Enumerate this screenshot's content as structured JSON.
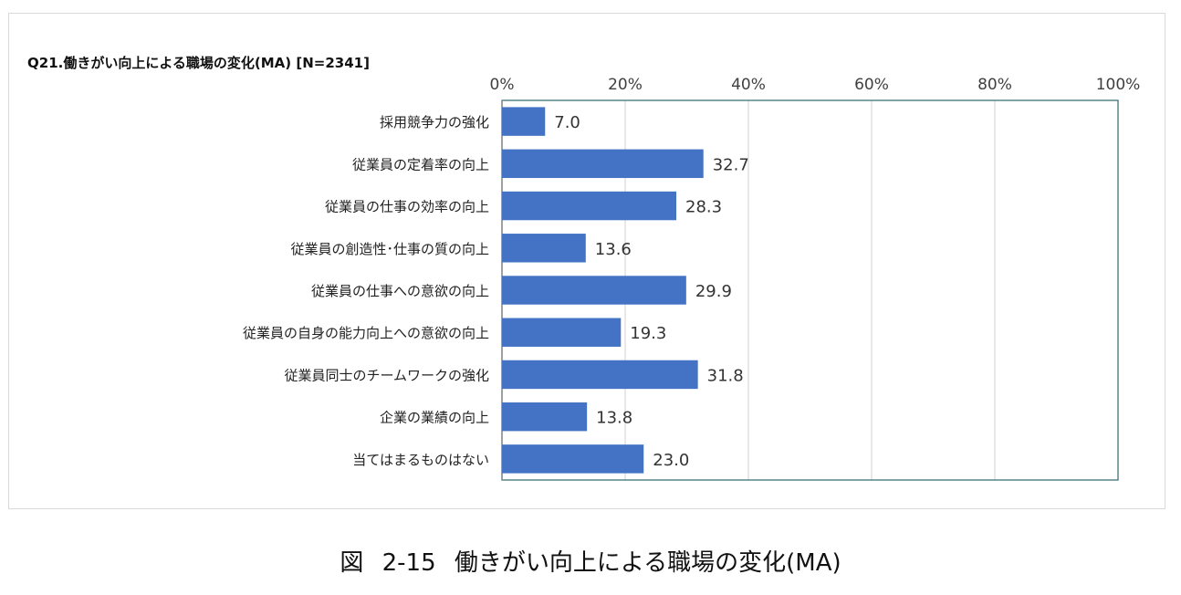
{
  "chart_data": {
    "type": "bar",
    "orientation": "horizontal",
    "title": "Q21.働きがい向上による職場の変化(MA) [N=2341]",
    "categories": [
      "採用競争力の強化",
      "従業員の定着率の向上",
      "従業員の仕事の効率の向上",
      "従業員の創造性･仕事の質の向上",
      "従業員の仕事への意欲の向上",
      "従業員の自身の能力向上への意欲の向上",
      "従業員同士のチームワークの強化",
      "企業の業績の向上",
      "当てはまるものはない"
    ],
    "values": [
      7.0,
      32.7,
      28.3,
      13.6,
      29.9,
      19.3,
      31.8,
      13.8,
      23.0
    ],
    "value_labels": [
      "7.0",
      "32.7",
      "28.3",
      "13.6",
      "29.9",
      "19.3",
      "31.8",
      "13.8",
      "23.0"
    ],
    "xlim": [
      0,
      100
    ],
    "x_ticks": [
      "0%",
      "20%",
      "40%",
      "60%",
      "80%",
      "100%"
    ],
    "x_axis_position": "top",
    "grid": true,
    "bar_color": "#4472c4",
    "legend": "none"
  },
  "caption": {
    "prefix": "図",
    "number": "2-15",
    "text": "働きがい向上による職場の変化(MA)"
  }
}
